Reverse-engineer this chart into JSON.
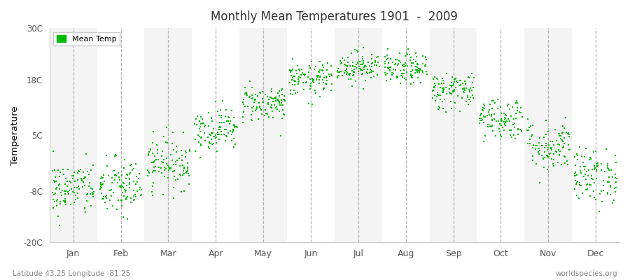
{
  "title": "Monthly Mean Temperatures 1901  -  2009",
  "ylabel": "Temperature",
  "bottom_left": "Latitude 43.25 Longitude -81.25",
  "bottom_right": "worldspecies.org",
  "legend_label": "Mean Temp",
  "dot_color": "#00bb00",
  "ylim": [
    -20,
    30
  ],
  "yticks": [
    -20,
    -8,
    5,
    18,
    30
  ],
  "ytick_labels": [
    "-20C",
    "-8C",
    "5C",
    "18C",
    "30C"
  ],
  "months": [
    "Jan",
    "Feb",
    "Mar",
    "Apr",
    "May",
    "Jun",
    "Jul",
    "Aug",
    "Sep",
    "Oct",
    "Nov",
    "Dec"
  ],
  "mean_temps": [
    -7.5,
    -7.2,
    -1.5,
    6.5,
    12.5,
    18.0,
    21.0,
    20.5,
    15.5,
    9.0,
    2.5,
    -4.5
  ],
  "std_temps": [
    3.2,
    3.5,
    3.0,
    2.5,
    2.2,
    2.0,
    1.8,
    1.8,
    2.2,
    2.5,
    3.0,
    3.2
  ],
  "n_years": 109,
  "seed": 42,
  "background_color": "#ffffff",
  "plot_bg_color": "#ffffff",
  "band_color_even": "#f4f4f4",
  "band_color_odd": "#ffffff"
}
